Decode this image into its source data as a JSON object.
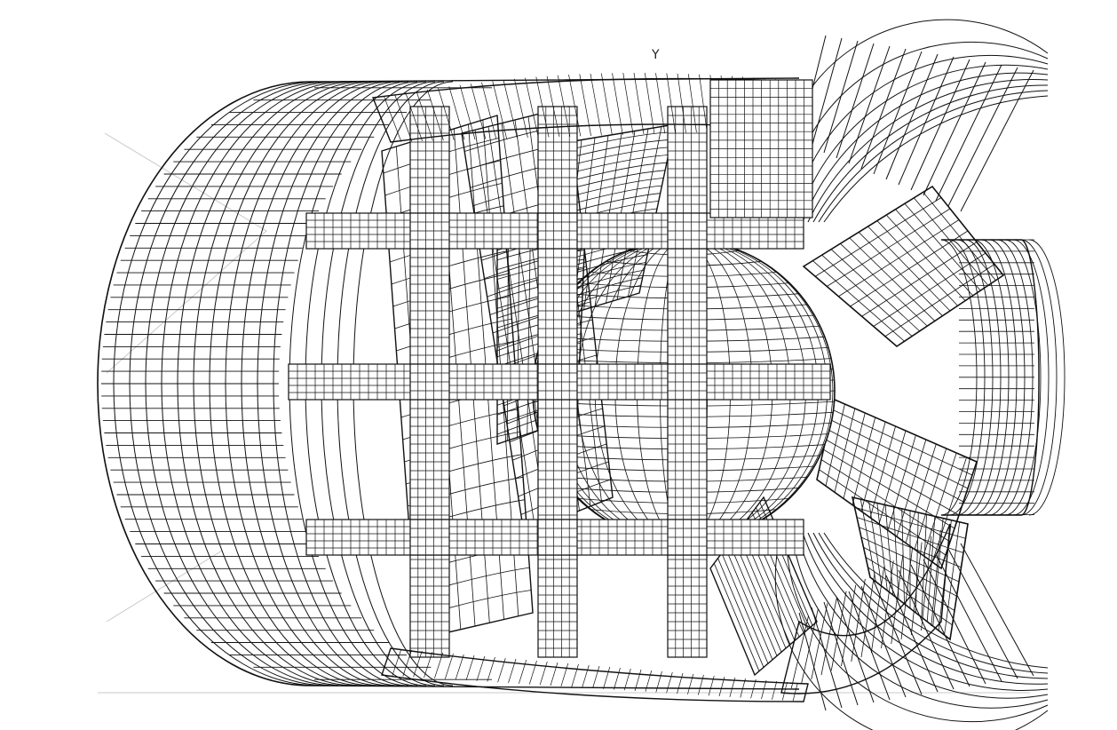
{
  "figure": {
    "axis_marker_label": "Y"
  },
  "colors": {
    "background": "#ffffff",
    "mesh_line": "#111111",
    "faint_line": "#c8c8c8"
  }
}
